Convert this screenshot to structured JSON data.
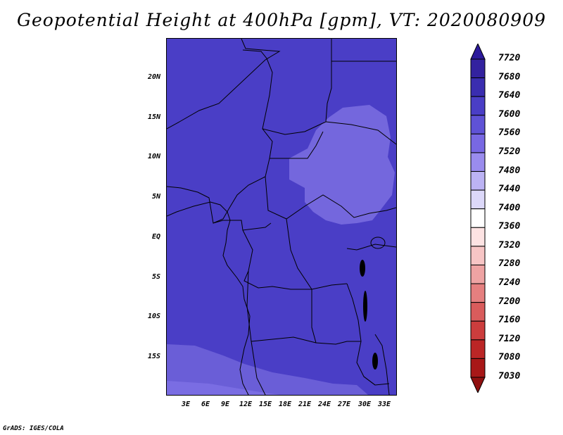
{
  "title": "Geopotential Height at 400hPa [gpm], VT: 2020080909",
  "footer": "GrADS: IGES/COLA",
  "map": {
    "lat_ticks": [
      "20N",
      "15N",
      "10N",
      "5N",
      "EQ",
      "5S",
      "10S",
      "15S"
    ],
    "lon_ticks": [
      "3E",
      "6E",
      "9E",
      "12E",
      "15E",
      "18E",
      "21E",
      "24E",
      "27E",
      "30E",
      "33E"
    ]
  },
  "colorbar": {
    "labels": [
      "7720",
      "7680",
      "7640",
      "7600",
      "7560",
      "7520",
      "7480",
      "7440",
      "7400",
      "7360",
      "7320",
      "7280",
      "7240",
      "7200",
      "7160",
      "7120",
      "7080",
      "7030"
    ],
    "colors": [
      "#2c1a9c",
      "#33229f",
      "#3a2db0",
      "#4a3ec6",
      "#5f52d6",
      "#7868e3",
      "#9a8cee",
      "#bcb3f4",
      "#dcd8f9",
      "#ffffff",
      "#fde3e3",
      "#f7c5c5",
      "#eea3a3",
      "#e57f7f",
      "#d95c5c",
      "#cc3d3d",
      "#bb2626",
      "#a81818",
      "#901010"
    ]
  }
}
